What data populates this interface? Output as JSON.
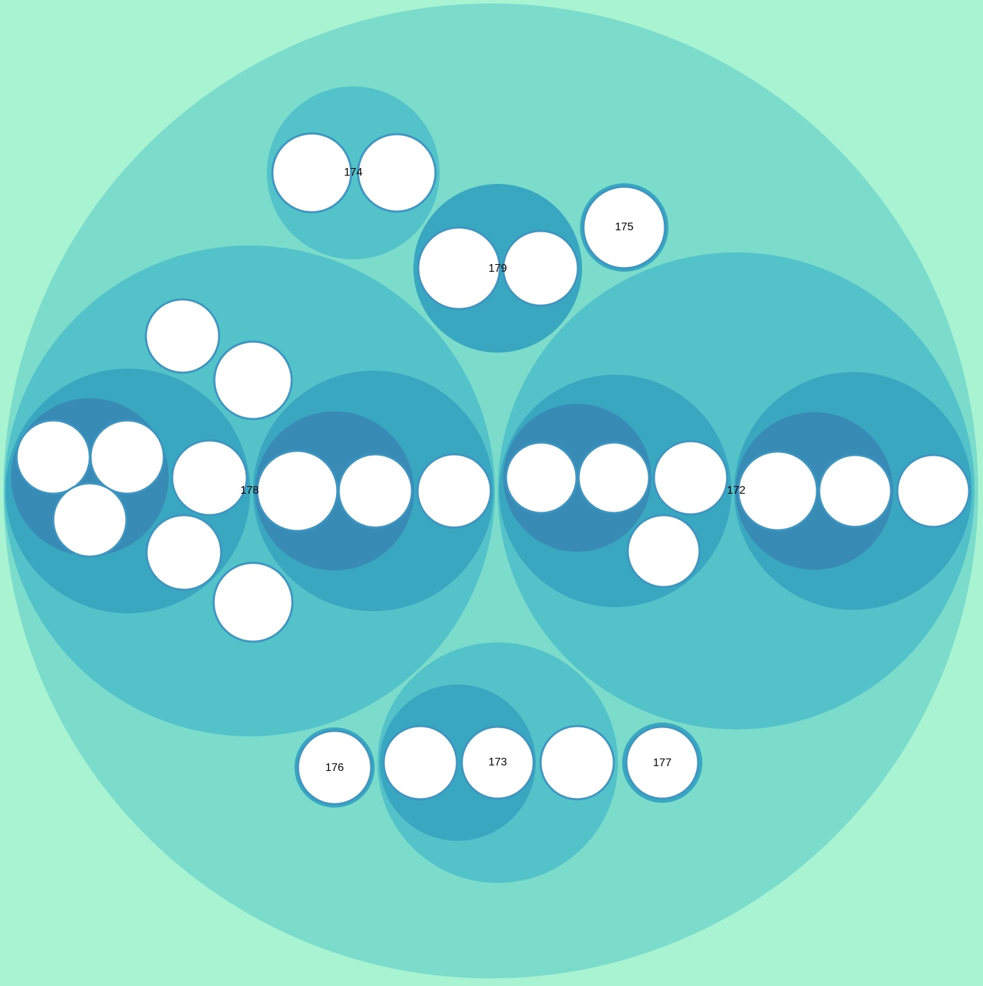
{
  "diagram": {
    "type": "circle-packing",
    "colors": {
      "background": "#a8f3d2",
      "depth1": "#7cdccc",
      "depth2": "#54c2c9",
      "depth3": "#3aa7c1",
      "depth4": "#378bb5",
      "leaf_fill": "#ffffff",
      "leaf_stroke": "#3e96c0"
    },
    "labels": {
      "n172": "172",
      "n173": "173",
      "n174": "174",
      "n175": "175",
      "n176": "176",
      "n177": "177",
      "n178": "178",
      "n179": "179"
    }
  }
}
